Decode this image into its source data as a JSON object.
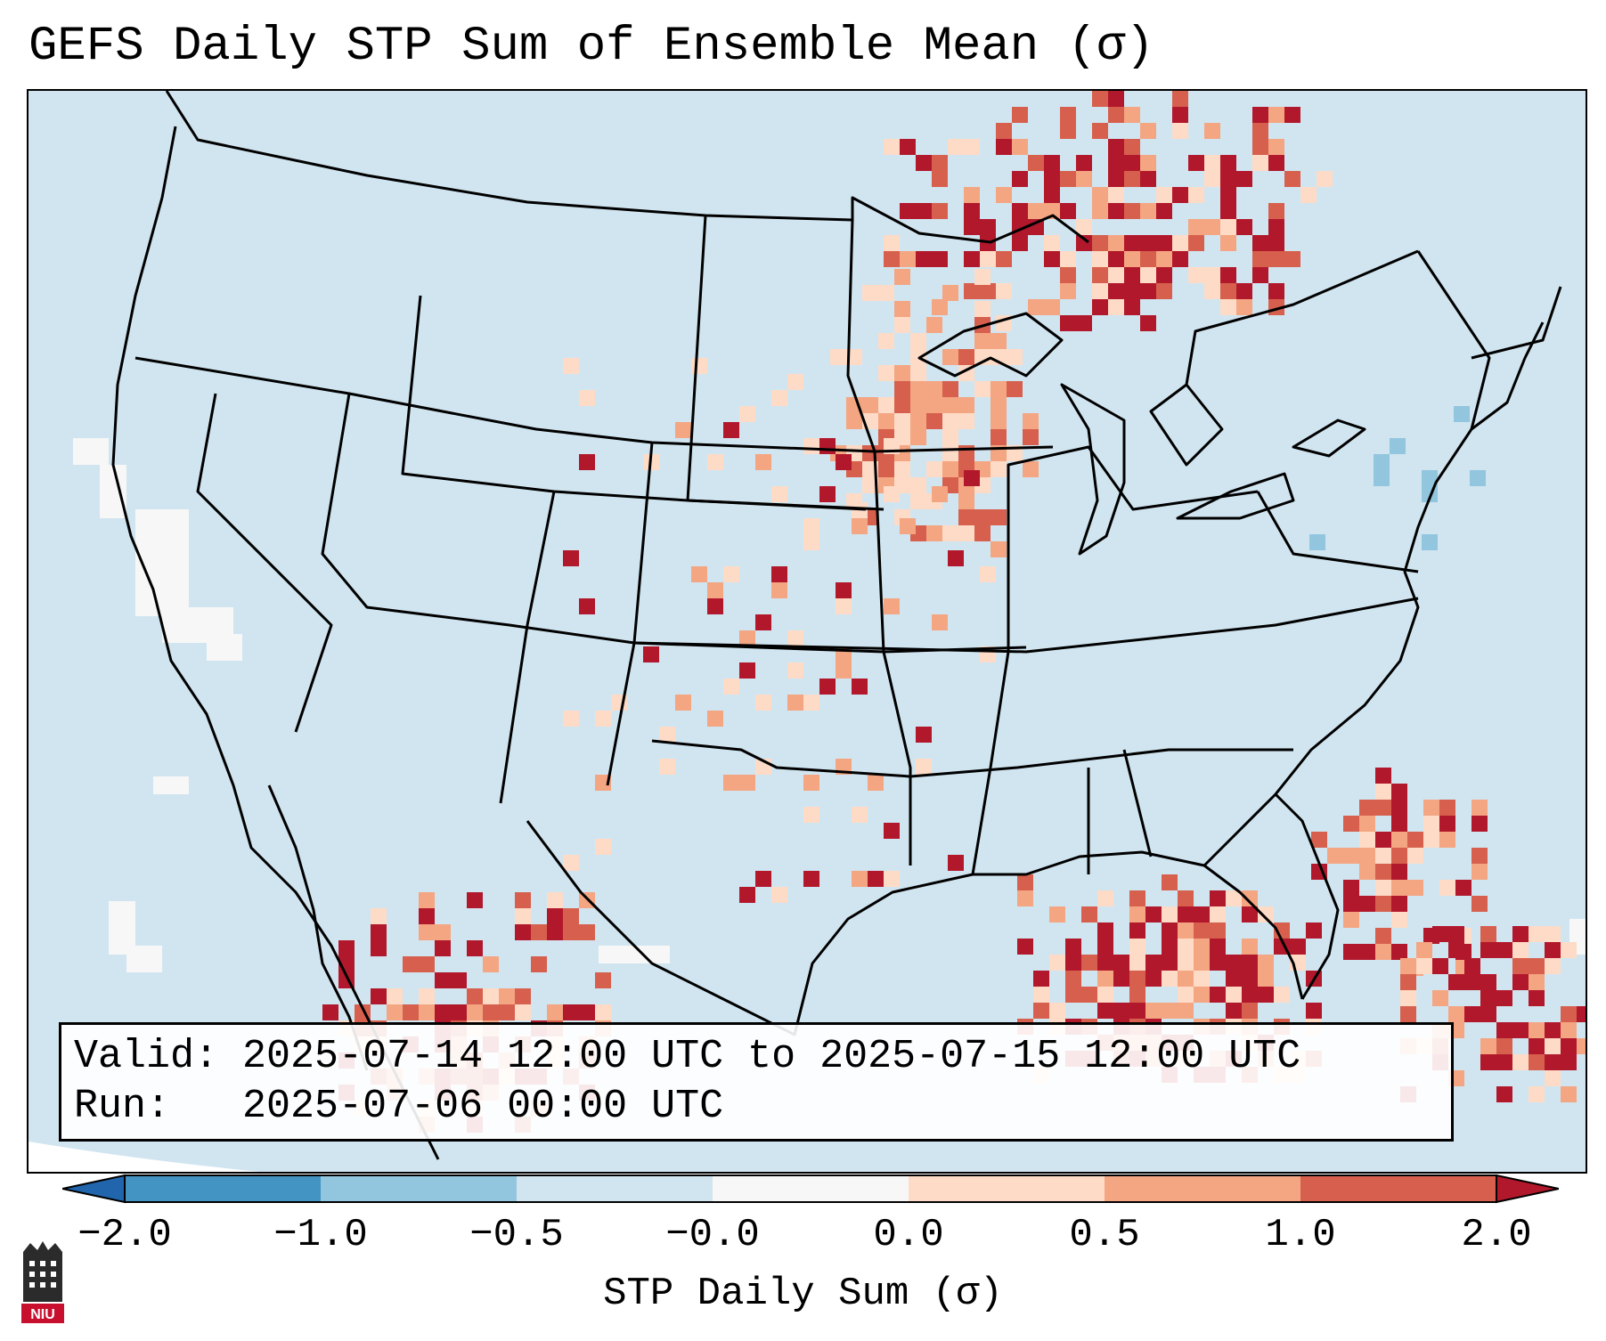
{
  "title": "GEFS Daily STP Sum of Ensemble Mean (σ)",
  "info": {
    "valid_label": "Valid:",
    "valid_value": "2025-07-14 12:00 UTC to 2025-07-15 12:00 UTC",
    "run_label": "Run:  ",
    "run_value": "2025-07-06 00:00 UTC"
  },
  "colorbar": {
    "label": "STP Daily Sum (σ)",
    "ticks": [
      "−2.0",
      "−1.0",
      "−0.5",
      "−0.0",
      "0.0",
      "0.5",
      "1.0",
      "2.0"
    ],
    "colors": [
      "#2166ac",
      "#4393c3",
      "#92c5de",
      "#d1e5f0",
      "#f7f7f7",
      "#fddbc7",
      "#f4a582",
      "#d6604d",
      "#b2182b"
    ]
  },
  "map": {
    "background_color": "#d1e5f0",
    "anomaly_regions": [
      {
        "name": "upper-midwest-canada",
        "level": "high"
      },
      {
        "name": "minnesota-wisconsin",
        "level": "moderate"
      },
      {
        "name": "gulf-of-mexico-north",
        "level": "high"
      },
      {
        "name": "atlantic-southeast-coast",
        "level": "high"
      },
      {
        "name": "western-atlantic",
        "level": "high"
      },
      {
        "name": "northwest-mexico",
        "level": "high"
      },
      {
        "name": "central-plains",
        "level": "low"
      },
      {
        "name": "northeast-us",
        "level": "negative"
      }
    ]
  },
  "logo": {
    "text": "NIU"
  }
}
